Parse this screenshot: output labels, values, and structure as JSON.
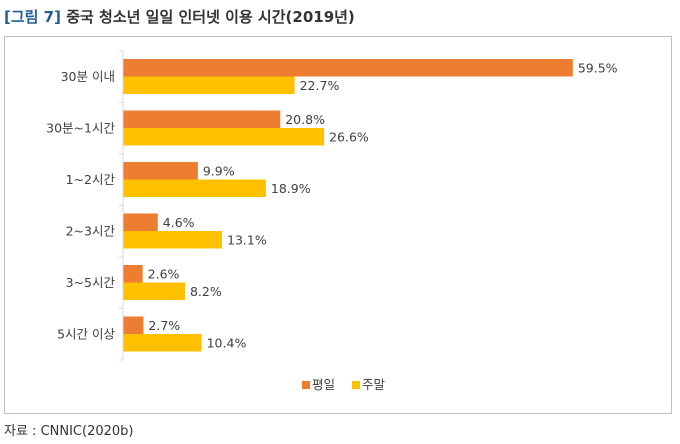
{
  "figure": {
    "label": "[그림 7]",
    "title": "중국 청소년 일일 인터넷 이용 시간(2019년)"
  },
  "source": "자료 : CNNIC(2020b)",
  "chart_data": {
    "type": "bar",
    "orientation": "horizontal",
    "categories": [
      "30분 이내",
      "30분~1시간",
      "1~2시간",
      "2~3시간",
      "3~5시간",
      "5시간 이상"
    ],
    "series": [
      {
        "name": "평일",
        "color": "#ed7d31",
        "values": [
          59.5,
          20.8,
          9.9,
          4.6,
          2.6,
          2.7
        ],
        "labels": [
          "59.5%",
          "20.8%",
          "9.9%",
          "4.6%",
          "2.6%",
          "2.7%"
        ]
      },
      {
        "name": "주말",
        "color": "#ffc000",
        "values": [
          22.7,
          26.6,
          18.9,
          13.1,
          8.2,
          10.4
        ],
        "labels": [
          "22.7%",
          "26.6%",
          "18.9%",
          "13.1%",
          "8.2%",
          "10.4%"
        ]
      }
    ],
    "xlim": [
      0,
      70
    ],
    "grid": false,
    "legend": "bottom"
  }
}
